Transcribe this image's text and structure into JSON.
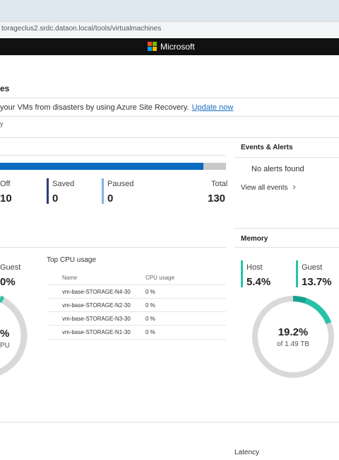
{
  "browser": {
    "url": "torageclus2.srdc.dataon.local/tools/virtualmachines"
  },
  "brand": {
    "name": "Microsoft"
  },
  "page": {
    "title_fragment": "es",
    "notice_text": "your VMs from disasters by using Azure Site Recovery.",
    "notice_link": "Update now",
    "fragment_y": "y"
  },
  "vm_summary": {
    "progress_fraction": 0.9,
    "stats": [
      {
        "label": "Off",
        "value": "10"
      },
      {
        "label": "Saved",
        "value": "0"
      },
      {
        "label": "Paused",
        "value": "0"
      },
      {
        "label": "Total",
        "value": "130"
      }
    ]
  },
  "events": {
    "title": "Events & Alerts",
    "empty_text": "No alerts found",
    "view_all": "View all events",
    "chevron_glyph": "›"
  },
  "cpu": {
    "guest_label": "Guest",
    "guest_value": "0%",
    "ring_big_fragment": "%",
    "ring_small_fragment": "PU",
    "top_usage_title": "Top CPU usage",
    "columns": [
      "Name",
      "CPU usage"
    ],
    "rows": [
      {
        "name": "vm-base-STORAGE-N4-30",
        "usage": "0 %"
      },
      {
        "name": "vm-base-STORAGE-N2-30",
        "usage": "0 %"
      },
      {
        "name": "vm-base-STORAGE-N3-30",
        "usage": "0 %"
      },
      {
        "name": "vm-base-STORAGE-N1-30",
        "usage": "0 %"
      }
    ]
  },
  "memory": {
    "title": "Memory",
    "host_label": "Host",
    "host_value": "5.4%",
    "guest_label": "Guest",
    "guest_value": "13.7%",
    "usage_percent": "19.2%",
    "usage_of_total": "of 1.49 TB",
    "host_fraction": 0.054,
    "guest_fraction": 0.137
  },
  "latency": {
    "label": "Latency"
  },
  "colors": {
    "accent_blue": "#0a6bbf",
    "link_blue": "#1f6fc5",
    "teal": "#27c2a8",
    "dark_teal": "#17a38d",
    "off_bar": "#2c3e73",
    "paused_bar": "#7fb3e6",
    "ring_track": "#d9d9d9"
  }
}
